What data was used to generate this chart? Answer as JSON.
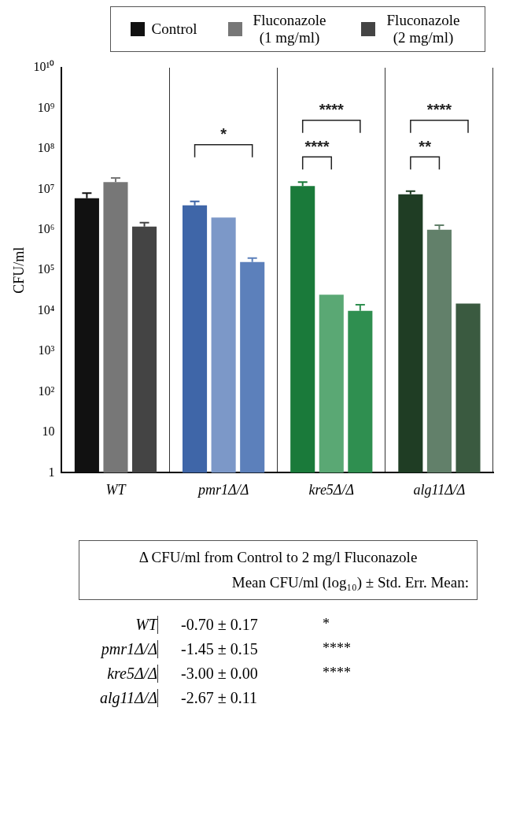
{
  "chart_data": {
    "type": "bar",
    "ylabel": "CFU/ml",
    "categories": [
      "WT",
      "pmr1Δ/Δ",
      "kre5Δ/Δ",
      "alg11Δ/Δ"
    ],
    "series": [
      {
        "name": "Control",
        "color": "#111111",
        "colors": [
          "#111111",
          "#3f66a8",
          "#1a7a3a",
          "#1f3d24"
        ],
        "values": [
          6000000,
          4000000,
          12000000,
          7500000
        ],
        "errors": [
          [
            6000000,
            8000000
          ],
          [
            4000000,
            5000000
          ],
          [
            12000000,
            15000000
          ],
          [
            7500000,
            9000000
          ]
        ]
      },
      {
        "name": "Fluconazole (1 mg/ml)",
        "color": "#777777",
        "colors": [
          "#777777",
          "#7c98c8",
          "#5aa874",
          "#62806a"
        ],
        "values": [
          15000000,
          2000000,
          25000,
          1000000
        ],
        "errors": [
          [
            15000000,
            19000000
          ],
          null,
          null,
          [
            1000000,
            1300000
          ]
        ]
      },
      {
        "name": "Fluconazole (2 mg/ml)",
        "color": "#444444",
        "colors": [
          "#444444",
          "#5c80bb",
          "#2f8f50",
          "#3a5a40"
        ],
        "values": [
          1200000,
          160000,
          10000,
          15000
        ],
        "errors": [
          [
            1200000,
            1500000
          ],
          [
            160000,
            200000
          ],
          [
            10000,
            14000
          ],
          null
        ]
      }
    ],
    "log": "y",
    "ylim": [
      1,
      10000000000
    ],
    "yticks": [
      1,
      10,
      {
        "value": 100,
        "label": "10²"
      },
      {
        "value": 1000,
        "label": "10³"
      },
      {
        "value": 10000,
        "label": "10⁴"
      },
      {
        "value": 100000,
        "label": "10⁵"
      },
      {
        "value": 1000000,
        "label": "10⁶"
      },
      {
        "value": 10000000,
        "label": "10⁷"
      },
      {
        "value": 100000000,
        "label": "10⁸"
      },
      {
        "value": 1000000000,
        "label": "10⁹"
      },
      {
        "value": 10000000000,
        "label": "10¹⁰"
      }
    ],
    "grid": "x",
    "legend": "top",
    "annotations": [
      "*",
      "****",
      "****",
      "****",
      "**",
      "Δ CFU/ml from Control to 2 mg/l Fluconazole",
      "Mean CFU/ml (log₁₀) ± Std. Err. Mean:",
      "WT",
      "-0.70 ± 0.17",
      "pmr1Δ/Δ",
      "-1.45 ± 0.15",
      "kre5Δ/Δ",
      "-3.00 ± 0.00",
      "alg11Δ/Δ",
      "-2.67 ± 0.11",
      "*",
      "****",
      "****"
    ]
  }
}
